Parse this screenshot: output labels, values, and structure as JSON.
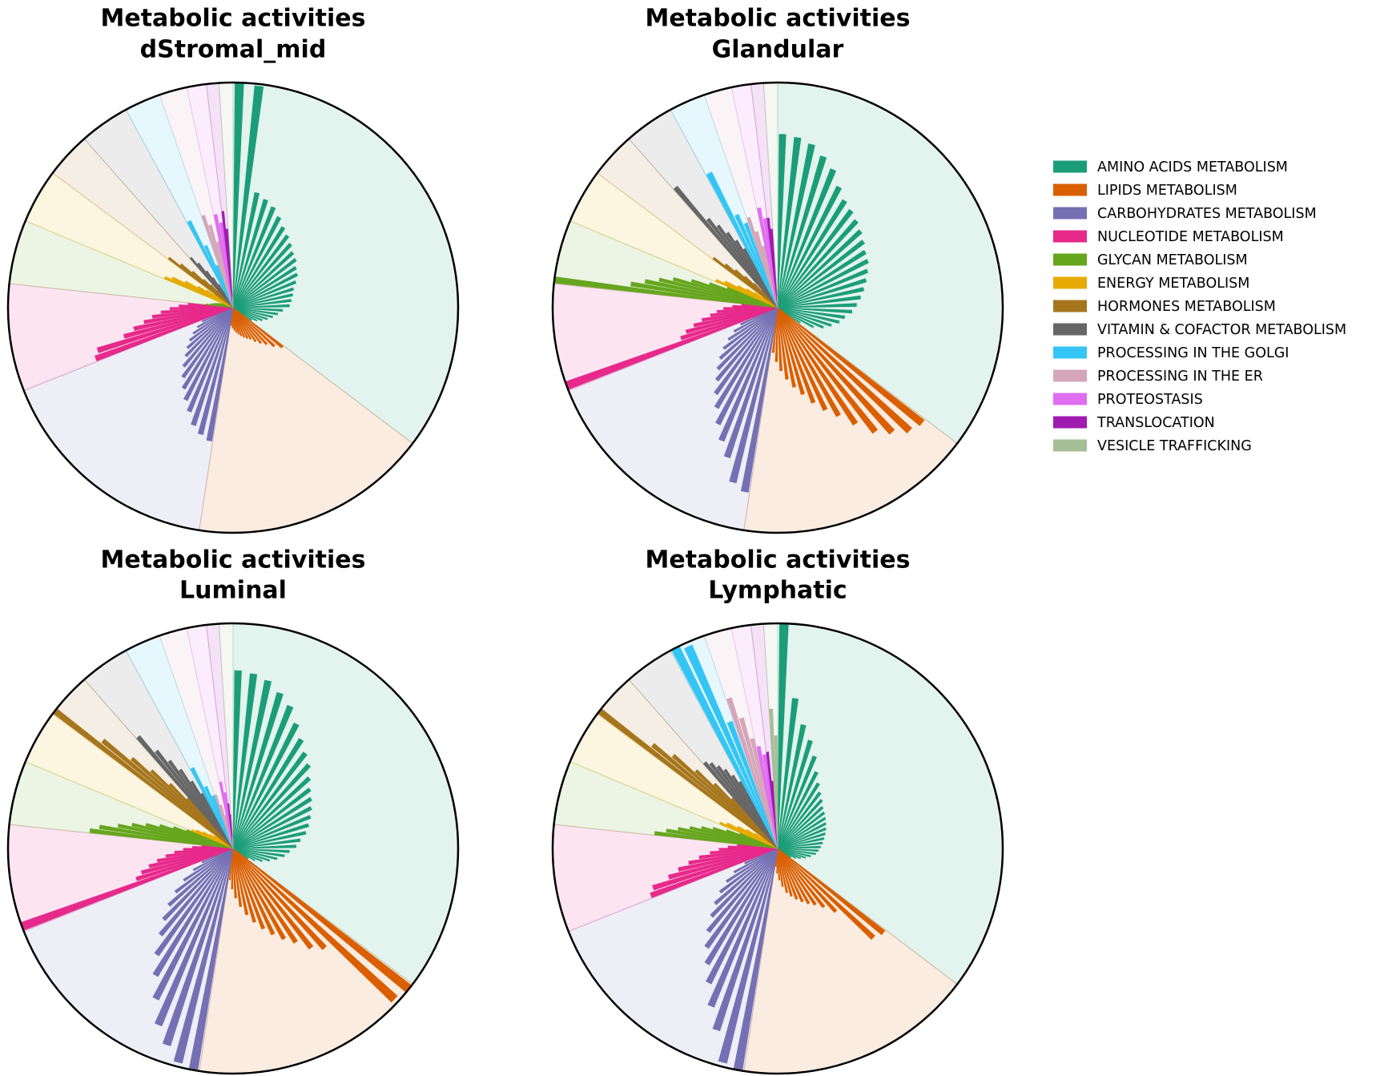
{
  "chart_data": [
    {
      "type": "polar_bar",
      "title": "Metabolic activities",
      "subtitle": "dStromal_mid",
      "rlim": [
        0,
        1
      ],
      "series": [
        {
          "name": "AMINO ACIDS METABOLISM",
          "color": "#1b9e77",
          "share": 35.3,
          "values": [
            1.0,
            0.99,
            0.52,
            0.5,
            0.48,
            0.45,
            0.42,
            0.4,
            0.38,
            0.36,
            0.35,
            0.33,
            0.32,
            0.3,
            0.28,
            0.27,
            0.26,
            0.25,
            0.22,
            0.2,
            0.18,
            0.16,
            0.14,
            0.12,
            0.1
          ]
        },
        {
          "name": "LIPIDS METABOLISM",
          "color": "#d95f02",
          "share": 17.1,
          "values": [
            0.28,
            0.25,
            0.22,
            0.2,
            0.18,
            0.16,
            0.15,
            0.14,
            0.13,
            0.12,
            0.11,
            0.1,
            0.09,
            0.08
          ]
        },
        {
          "name": "CARBOHYDRATES METABOLISM",
          "color": "#7570b3",
          "share": 16.6,
          "values": [
            0.6,
            0.58,
            0.55,
            0.5,
            0.46,
            0.42,
            0.38,
            0.34,
            0.3,
            0.27,
            0.24,
            0.21,
            0.18,
            0.15
          ]
        },
        {
          "name": "NUCLEOTIDE METABOLISM",
          "color": "#e7298a",
          "share": 7.7,
          "values": [
            0.65,
            0.63,
            0.5,
            0.45,
            0.4,
            0.36,
            0.32,
            0.28,
            0.24,
            0.2
          ]
        },
        {
          "name": "GLYCAN METABOLISM",
          "color": "#66a61e",
          "share": 4.6,
          "values": [
            0.12,
            0.1,
            0.09,
            0.08,
            0.07,
            0.06,
            0.05,
            0.04
          ]
        },
        {
          "name": "ENERGY METABOLISM",
          "color": "#e6ab02",
          "share": 3.9,
          "values": [
            0.33,
            0.3,
            0.24,
            0.18,
            0.14,
            0.1
          ]
        },
        {
          "name": "HORMONES METABOLISM",
          "color": "#a6761d",
          "share": 3.3,
          "values": [
            0.36,
            0.3,
            0.24,
            0.18,
            0.14,
            0.1
          ]
        },
        {
          "name": "VITAMIN & COFACTOR METABOLISM",
          "color": "#666666",
          "share": 3.6,
          "values": [
            0.29,
            0.25,
            0.2,
            0.16,
            0.12,
            0.08
          ]
        },
        {
          "name": "PROCESSING IN THE GOLGI",
          "color": "#35c5f4",
          "share": 2.6,
          "values": [
            0.43,
            0.3,
            0.2
          ]
        },
        {
          "name": "PROCESSING IN THE ER",
          "color": "#d4a6b8",
          "share": 2.0,
          "values": [
            0.43,
            0.38,
            0.3
          ]
        },
        {
          "name": "PROTEOSTASIS",
          "color": "#e06ef0",
          "share": 1.4,
          "values": [
            0.42,
            0.38
          ]
        },
        {
          "name": "TRANSLOCATION",
          "color": "#a01bb0",
          "share": 0.9,
          "values": [
            0.43,
            0.35
          ]
        },
        {
          "name": "VESICLE TRAFFICKING",
          "color": "#a6bf96",
          "share": 1.0,
          "values": [
            0.05,
            0.04
          ]
        }
      ]
    },
    {
      "type": "polar_bar",
      "title": "Metabolic activities",
      "subtitle": "Glandular",
      "rlim": [
        0,
        1
      ],
      "series": [
        {
          "name": "AMINO ACIDS METABOLISM",
          "color": "#1b9e77",
          "share": 35.3,
          "values": [
            0.77,
            0.76,
            0.74,
            0.7,
            0.66,
            0.6,
            0.56,
            0.54,
            0.52,
            0.5,
            0.48,
            0.46,
            0.45,
            0.43,
            0.41,
            0.39,
            0.37,
            0.35,
            0.33,
            0.3,
            0.28,
            0.25,
            0.22,
            0.18,
            0.12
          ]
        },
        {
          "name": "LIPIDS METABOLISM",
          "color": "#d95f02",
          "share": 17.1,
          "values": [
            0.82,
            0.8,
            0.75,
            0.7,
            0.62,
            0.55,
            0.5,
            0.45,
            0.4,
            0.36,
            0.32,
            0.28,
            0.24,
            0.2
          ]
        },
        {
          "name": "CARBOHYDRATES METABOLISM",
          "color": "#7570b3",
          "share": 16.6,
          "values": [
            0.83,
            0.8,
            0.7,
            0.64,
            0.58,
            0.52,
            0.47,
            0.42,
            0.38,
            0.34,
            0.3,
            0.26,
            0.22,
            0.18
          ]
        },
        {
          "name": "NUCLEOTIDE METABOLISM",
          "color": "#e7298a",
          "share": 7.7,
          "values": [
            1.0,
            0.45,
            0.42,
            0.38,
            0.34,
            0.3,
            0.27,
            0.24,
            0.2,
            0.16
          ]
        },
        {
          "name": "GLYCAN METABOLISM",
          "color": "#66a61e",
          "share": 4.6,
          "values": [
            1.0,
            0.66,
            0.6,
            0.54,
            0.48,
            0.4,
            0.32,
            0.24
          ]
        },
        {
          "name": "ENERGY METABOLISM",
          "color": "#e6ab02",
          "share": 3.9,
          "values": [
            0.3,
            0.26,
            0.2,
            0.16,
            0.12,
            0.08
          ]
        },
        {
          "name": "HORMONES METABOLISM",
          "color": "#a6761d",
          "share": 3.3,
          "values": [
            0.36,
            0.3,
            0.25,
            0.2,
            0.15,
            0.1
          ]
        },
        {
          "name": "VITAMIN & COFACTOR METABOLISM",
          "color": "#666666",
          "share": 3.6,
          "values": [
            0.7,
            0.5,
            0.45,
            0.4,
            0.35,
            0.3
          ]
        },
        {
          "name": "PROCESSING IN THE GOLGI",
          "color": "#35c5f4",
          "share": 2.6,
          "values": [
            0.67,
            0.45,
            0.4
          ]
        },
        {
          "name": "PROCESSING IN THE ER",
          "color": "#d4a6b8",
          "share": 2.0,
          "values": [
            0.42,
            0.35,
            0.28
          ]
        },
        {
          "name": "PROTEOSTASIS",
          "color": "#e06ef0",
          "share": 1.4,
          "values": [
            0.45,
            0.4
          ]
        },
        {
          "name": "TRANSLOCATION",
          "color": "#a01bb0",
          "share": 0.9,
          "values": [
            0.4,
            0.35
          ]
        },
        {
          "name": "VESICLE TRAFFICKING",
          "color": "#a6bf96",
          "share": 1.0,
          "values": [
            0.05,
            0.04
          ]
        }
      ]
    },
    {
      "type": "polar_bar",
      "title": "Metabolic activities",
      "subtitle": "Luminal",
      "rlim": [
        0,
        1
      ],
      "series": [
        {
          "name": "AMINO ACIDS METABOLISM",
          "color": "#1b9e77",
          "share": 35.3,
          "values": [
            0.79,
            0.78,
            0.76,
            0.72,
            0.68,
            0.62,
            0.57,
            0.53,
            0.5,
            0.46,
            0.43,
            0.41,
            0.39,
            0.37,
            0.35,
            0.33,
            0.3,
            0.28,
            0.25,
            0.23,
            0.2,
            0.17,
            0.14,
            0.11,
            0.08
          ]
        },
        {
          "name": "LIPIDS METABOLISM",
          "color": "#d95f02",
          "share": 17.1,
          "values": [
            1.0,
            0.98,
            0.6,
            0.56,
            0.5,
            0.46,
            0.42,
            0.38,
            0.34,
            0.3,
            0.26,
            0.22,
            0.18,
            0.14
          ]
        },
        {
          "name": "CARBOHYDRATES METABOLISM",
          "color": "#7570b3",
          "share": 16.6,
          "values": [
            1.0,
            0.98,
            0.92,
            0.85,
            0.75,
            0.66,
            0.58,
            0.5,
            0.44,
            0.38,
            0.32,
            0.26,
            0.2,
            0.15
          ]
        },
        {
          "name": "NUCLEOTIDE METABOLISM",
          "color": "#e7298a",
          "share": 7.7,
          "values": [
            1.0,
            0.45,
            0.42,
            0.38,
            0.34,
            0.3,
            0.26,
            0.22,
            0.18,
            0.14
          ]
        },
        {
          "name": "GLYCAN METABOLISM",
          "color": "#66a61e",
          "share": 4.6,
          "values": [
            0.64,
            0.6,
            0.52,
            0.46,
            0.4,
            0.34,
            0.28,
            0.22
          ]
        },
        {
          "name": "ENERGY METABOLISM",
          "color": "#e6ab02",
          "share": 3.9,
          "values": [
            0.2,
            0.18,
            0.15,
            0.12,
            0.1,
            0.08
          ]
        },
        {
          "name": "HORMONES METABOLISM",
          "color": "#a6761d",
          "share": 3.3,
          "values": [
            1.0,
            0.75,
            0.6,
            0.5,
            0.4,
            0.3
          ]
        },
        {
          "name": "VITAMIN & COFACTOR METABOLISM",
          "color": "#666666",
          "share": 3.6,
          "values": [
            0.65,
            0.55,
            0.48,
            0.42,
            0.35,
            0.28
          ]
        },
        {
          "name": "PROCESSING IN THE GOLGI",
          "color": "#35c5f4",
          "share": 2.6,
          "values": [
            0.4,
            0.3,
            0.25
          ]
        },
        {
          "name": "PROCESSING IN THE ER",
          "color": "#d4a6b8",
          "share": 2.0,
          "values": [
            0.25,
            0.2,
            0.15
          ]
        },
        {
          "name": "PROTEOSTASIS",
          "color": "#e06ef0",
          "share": 1.4,
          "values": [
            0.3,
            0.25
          ]
        },
        {
          "name": "TRANSLOCATION",
          "color": "#a01bb0",
          "share": 0.9,
          "values": [
            0.2,
            0.15
          ]
        },
        {
          "name": "VESICLE TRAFFICKING",
          "color": "#a6bf96",
          "share": 1.0,
          "values": [
            0.05,
            0.04
          ]
        }
      ]
    },
    {
      "type": "polar_bar",
      "title": "Metabolic activities",
      "subtitle": "Lymphatic",
      "rlim": [
        0,
        1
      ],
      "series": [
        {
          "name": "AMINO ACIDS METABOLISM",
          "color": "#1b9e77",
          "share": 35.3,
          "values": [
            1.0,
            0.67,
            0.56,
            0.5,
            0.44,
            0.38,
            0.34,
            0.31,
            0.29,
            0.27,
            0.26,
            0.25,
            0.24,
            0.23,
            0.22,
            0.21,
            0.2,
            0.19,
            0.18,
            0.17,
            0.15,
            0.13,
            0.11,
            0.09,
            0.07
          ]
        },
        {
          "name": "LIPIDS METABOLISM",
          "color": "#d95f02",
          "share": 17.1,
          "values": [
            0.6,
            0.58,
            0.38,
            0.33,
            0.3,
            0.28,
            0.26,
            0.24,
            0.22,
            0.2,
            0.17,
            0.14,
            0.11,
            0.08
          ]
        },
        {
          "name": "CARBOHYDRATES METABOLISM",
          "color": "#7570b3",
          "share": 16.6,
          "values": [
            1.0,
            0.98,
            0.85,
            0.76,
            0.67,
            0.6,
            0.54,
            0.48,
            0.42,
            0.37,
            0.32,
            0.27,
            0.22,
            0.16
          ]
        },
        {
          "name": "NUCLEOTIDE METABOLISM",
          "color": "#e7298a",
          "share": 7.7,
          "values": [
            0.6,
            0.58,
            0.5,
            0.45,
            0.4,
            0.35,
            0.3,
            0.26,
            0.22,
            0.18
          ]
        },
        {
          "name": "GLYCAN METABOLISM",
          "color": "#66a61e",
          "share": 4.6,
          "values": [
            0.55,
            0.5,
            0.45,
            0.4,
            0.35,
            0.3,
            0.24,
            0.18
          ]
        },
        {
          "name": "ENERGY METABOLISM",
          "color": "#e6ab02",
          "share": 3.9,
          "values": [
            0.28,
            0.25,
            0.2,
            0.16,
            0.12,
            0.08
          ]
        },
        {
          "name": "HORMONES METABOLISM",
          "color": "#a6761d",
          "share": 3.3,
          "values": [
            1.0,
            0.72,
            0.62,
            0.5,
            0.4,
            0.3
          ]
        },
        {
          "name": "VITAMIN & COFACTOR METABOLISM",
          "color": "#666666",
          "share": 3.6,
          "values": [
            0.5,
            0.48,
            0.45,
            0.42,
            0.38,
            0.34
          ]
        },
        {
          "name": "PROCESSING IN THE GOLGI",
          "color": "#35c5f4",
          "share": 2.6,
          "values": [
            1.0,
            0.98,
            0.6
          ]
        },
        {
          "name": "PROCESSING IN THE ER",
          "color": "#d4a6b8",
          "share": 2.0,
          "values": [
            0.7,
            0.6,
            0.5
          ]
        },
        {
          "name": "PROTEOSTASIS",
          "color": "#e06ef0",
          "share": 1.4,
          "values": [
            0.46,
            0.42
          ]
        },
        {
          "name": "TRANSLOCATION",
          "color": "#a01bb0",
          "share": 0.9,
          "values": [
            0.43,
            0.3
          ]
        },
        {
          "name": "VESICLE TRAFFICKING",
          "color": "#a6bf96",
          "share": 1.0,
          "values": [
            0.62,
            0.5
          ]
        }
      ]
    }
  ]
}
